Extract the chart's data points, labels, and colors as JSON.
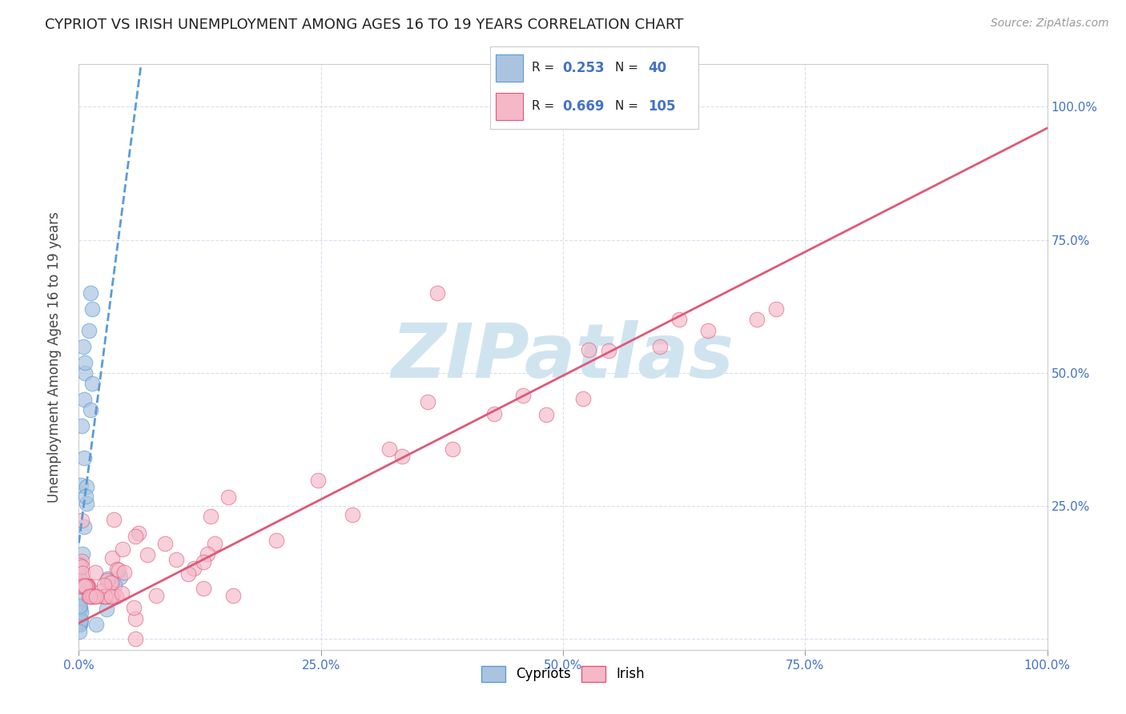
{
  "title": "CYPRIOT VS IRISH UNEMPLOYMENT AMONG AGES 16 TO 19 YEARS CORRELATION CHART",
  "source": "Source: ZipAtlas.com",
  "ylabel": "Unemployment Among Ages 16 to 19 years",
  "xlim": [
    0.0,
    1.0
  ],
  "ylim": [
    -0.02,
    1.08
  ],
  "x_ticks": [
    0.0,
    0.25,
    0.5,
    0.75,
    1.0
  ],
  "y_ticks": [
    0.0,
    0.25,
    0.5,
    0.75,
    1.0
  ],
  "x_tick_labels": [
    "0.0%",
    "25.0%",
    "50.0%",
    "75.0%",
    "100.0%"
  ],
  "right_y_tick_labels": [
    "",
    "25.0%",
    "50.0%",
    "75.0%",
    "100.0%"
  ],
  "legend_r_cypriot": "0.253",
  "legend_n_cypriot": "40",
  "legend_r_irish": "0.669",
  "legend_n_irish": "105",
  "blue_scatter_color": "#aac4e0",
  "blue_edge_color": "#5b9bd5",
  "pink_scatter_color": "#f4b8c8",
  "pink_edge_color": "#e05878",
  "blue_line_color": "#5b9bd5",
  "pink_line_color": "#e05878",
  "text_blue": "#4472c4",
  "grid_color": "#d0d8e8",
  "watermark_color": "#d0e4f0",
  "cyp_trend_slope": 14.0,
  "cyp_trend_intercept": 0.18,
  "iri_trend_slope": 0.93,
  "iri_trend_intercept": 0.03
}
